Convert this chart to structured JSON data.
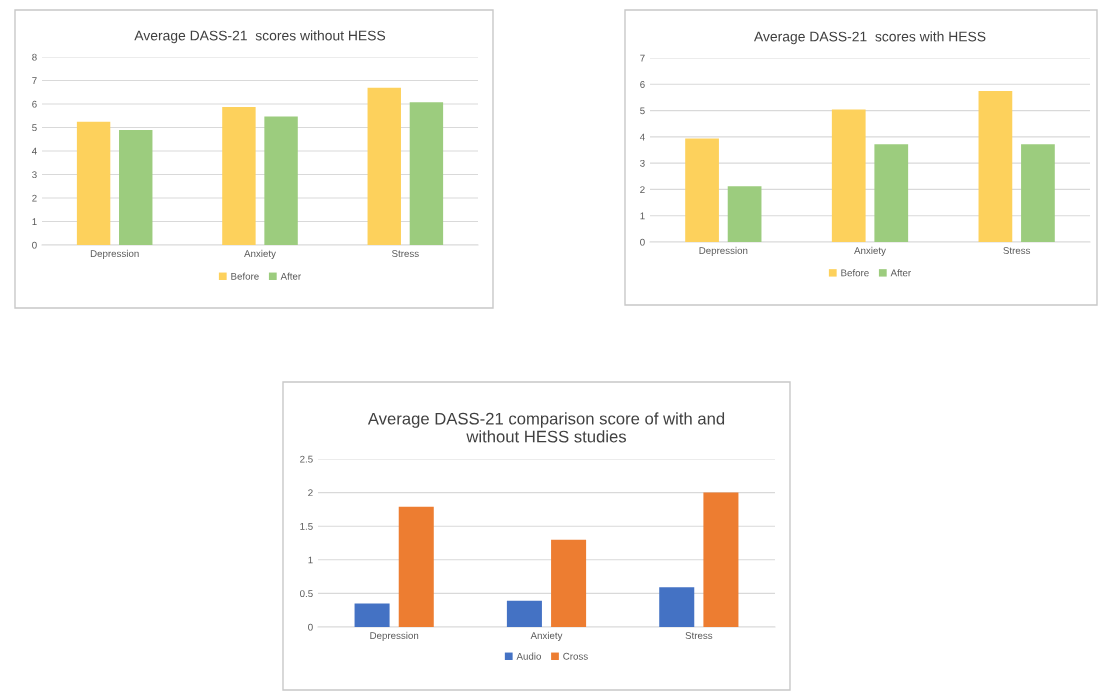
{
  "chart_data": [
    {
      "type": "bar",
      "title": "Average DASS-21  scores without HESS",
      "categories": [
        "Depression",
        "Anxiety",
        "Stress"
      ],
      "series": [
        {
          "name": "Before",
          "color": "#fdd15c",
          "values": [
            5.24,
            5.87,
            6.69
          ]
        },
        {
          "name": "After",
          "color": "#9ccc7e",
          "values": [
            4.89,
            5.47,
            6.07
          ]
        }
      ],
      "ylim": [
        0,
        8
      ],
      "yticks": [
        0,
        1,
        2,
        3,
        4,
        5,
        6,
        7,
        8
      ],
      "grid": "y",
      "legend": "bottom"
    },
    {
      "type": "bar",
      "title": "Average DASS-21  scores with HESS",
      "categories": [
        "Depression",
        "Anxiety",
        "Stress"
      ],
      "series": [
        {
          "name": "Before",
          "color": "#fdd15c",
          "values": [
            3.94,
            5.04,
            5.74
          ]
        },
        {
          "name": "After",
          "color": "#9ccc7e",
          "values": [
            2.12,
            3.72,
            3.72
          ]
        }
      ],
      "ylim": [
        0,
        7
      ],
      "yticks": [
        0,
        1,
        2,
        3,
        4,
        5,
        6,
        7
      ],
      "grid": "y",
      "legend": "bottom"
    },
    {
      "type": "bar",
      "title": "Average DASS-21 comparison score of with and\nwithout HESS studies",
      "categories": [
        "Depression",
        "Anxiety",
        "Stress"
      ],
      "series": [
        {
          "name": "Audio",
          "color": "#4472c4",
          "values": [
            0.35,
            0.39,
            0.59
          ]
        },
        {
          "name": "Cross",
          "color": "#ed7d31",
          "values": [
            1.79,
            1.3,
            2.0
          ]
        }
      ],
      "ylim": [
        0,
        2.5
      ],
      "yticks": [
        0,
        0.5,
        1,
        1.5,
        2,
        2.5
      ],
      "grid": "y",
      "legend": "bottom"
    }
  ]
}
